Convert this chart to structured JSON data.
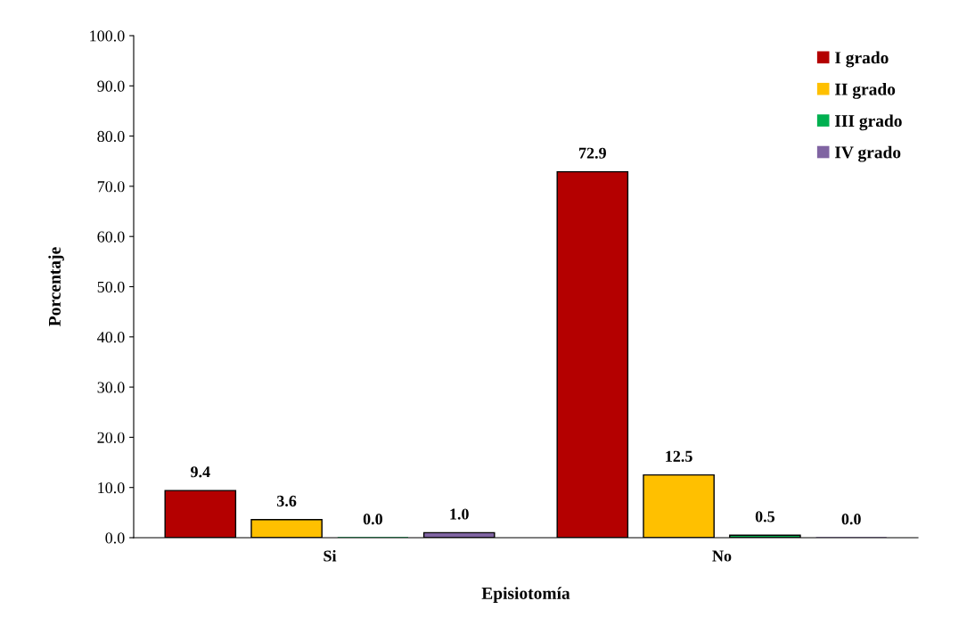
{
  "chart_data": {
    "type": "bar",
    "xlabel": "Episiotomía",
    "ylabel": "Porcentaje",
    "categories": [
      "Si",
      "No"
    ],
    "series": [
      {
        "name": "I grado",
        "color": "#b40000",
        "values": [
          9.4,
          72.9
        ],
        "value_labels": [
          "9.4",
          "72.9"
        ]
      },
      {
        "name": "II grado",
        "color": "#ffc000",
        "values": [
          3.6,
          12.5
        ],
        "value_labels": [
          "3.6",
          "12.5"
        ]
      },
      {
        "name": "III grado",
        "color": "#00b050",
        "values": [
          0.0,
          0.5
        ],
        "value_labels": [
          "0.0",
          "0.5"
        ]
      },
      {
        "name": "IV grado",
        "color": "#8064a2",
        "values": [
          1.0,
          0.0
        ],
        "value_labels": [
          "1.0",
          "0.0"
        ]
      }
    ],
    "ylim": [
      0,
      100
    ],
    "yticks": [
      {
        "value": 0,
        "label": "0.0"
      },
      {
        "value": 10,
        "label": "10.0"
      },
      {
        "value": 20,
        "label": "20.0"
      },
      {
        "value": 30,
        "label": "30.0"
      },
      {
        "value": 40,
        "label": "40.0"
      },
      {
        "value": 50,
        "label": "50.0"
      },
      {
        "value": 60,
        "label": "60.0"
      },
      {
        "value": 70,
        "label": "70.0"
      },
      {
        "value": 80,
        "label": "80.0"
      },
      {
        "value": 90,
        "label": "90.0"
      },
      {
        "value": 100,
        "label": "100.0"
      }
    ],
    "grid": false,
    "legend": "top right"
  }
}
